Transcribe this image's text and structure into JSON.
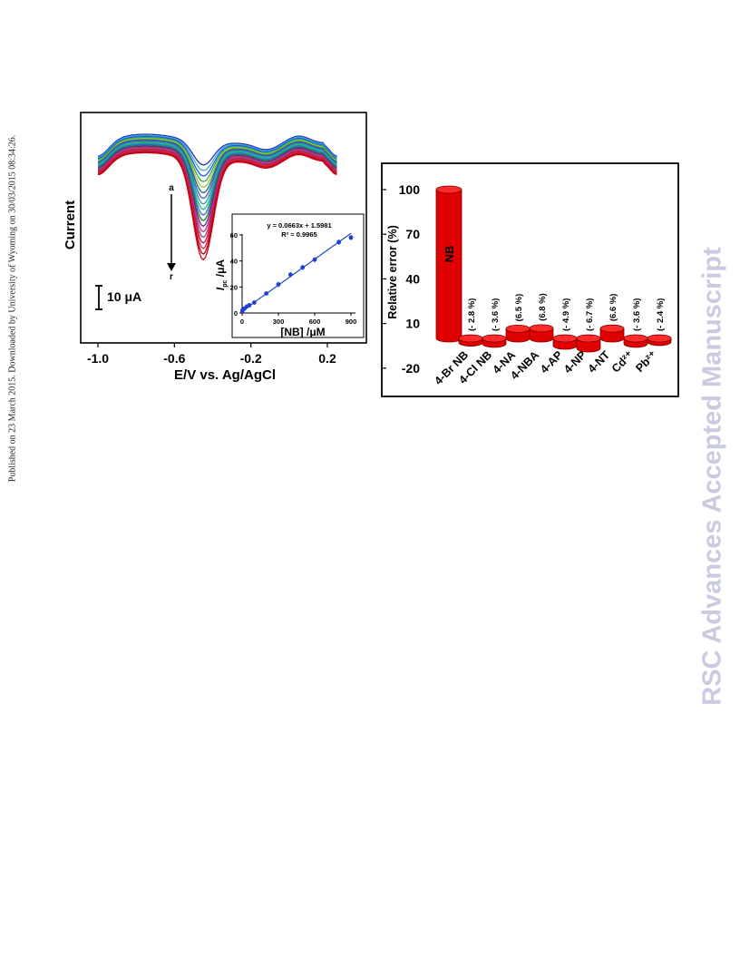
{
  "side_note": "Published on 23 March 2015. Downloaded by University of Wyoming on 30/03/2015 08:34:26.",
  "watermark": "RSC Advances Accepted Manuscript",
  "colors": {
    "accent_red": "#e00000",
    "fit_line": "#1f4fbf",
    "point": "#1f3fd8",
    "watermark": "#c9cbe0"
  },
  "chart_data": [
    {
      "type": "line",
      "title": "",
      "xlabel": "E/V vs. Ag/AgCl",
      "ylabel": "Current",
      "x_ticks": [
        "-1.0",
        "-0.6",
        "-0.2",
        "0.2"
      ],
      "xlim": [
        -1.0,
        0.35
      ],
      "scale_bar_label": "10 μA",
      "arrow_start_label": "a",
      "arrow_end_label": "r",
      "curve_count": 18,
      "peak_potential": -0.45,
      "peak_depth_uA_range": [
        9,
        38
      ],
      "series_colors": [
        "#2030c0",
        "#38b0c8",
        "#2050ff",
        "#30b040",
        "#a0c030",
        "#107070",
        "#5050d0",
        "#20a0a0",
        "#10c060",
        "#3060ff",
        "#208020",
        "#6020a0",
        "#c03070",
        "#904090",
        "#c01030",
        "#e02040",
        "#b00020",
        "#d00010"
      ],
      "inset": {
        "type": "scatter",
        "xlabel": "[NB] /μM",
        "ylabel_main": "I",
        "ylabel_sub": "pc",
        "ylabel_unit": " /μA",
        "equation": "y = 0.0663x + 1.5981",
        "r_squared": "R² = 0.9965",
        "xlim": [
          0,
          900
        ],
        "ylim": [
          0,
          60
        ],
        "x_ticks": [
          "0",
          "300",
          "600",
          "900"
        ],
        "y_ticks": [
          "0",
          "20",
          "40",
          "60"
        ],
        "x": [
          2,
          5,
          10,
          20,
          40,
          60,
          100,
          200,
          300,
          400,
          500,
          600,
          800,
          900
        ],
        "y": [
          1.5,
          2.5,
          3,
          3.5,
          5,
          6,
          8,
          15,
          22,
          29.5,
          35,
          41,
          54.5,
          58
        ]
      }
    },
    {
      "type": "bar",
      "ylabel": "Relative error (%)",
      "ylim": [
        -20,
        100
      ],
      "y_ticks": [
        "100",
        "70",
        "40",
        "10",
        "-20"
      ],
      "categories": [
        "4-Br NB",
        "4-Cl NB",
        "4-NA",
        "4-NBA",
        "4-AP",
        "4-NP",
        "4-NT",
        "Cd²⁺",
        "Pb²⁺"
      ],
      "reference": {
        "label": "NB",
        "value": 100
      },
      "values": [
        -2.8,
        -3.6,
        6.5,
        6.8,
        -4.9,
        -6.7,
        6.6,
        -3.6,
        -2.4
      ],
      "value_labels": [
        "(- 2.8 %)",
        "(- 3.6 %)",
        "(6.5 %)",
        "(6.8 %)",
        "(- 4.9 %)",
        "(- 6.7 %)",
        "(6.6 %)",
        "(- 3.6 %)",
        "(- 2.4 %)"
      ]
    }
  ]
}
